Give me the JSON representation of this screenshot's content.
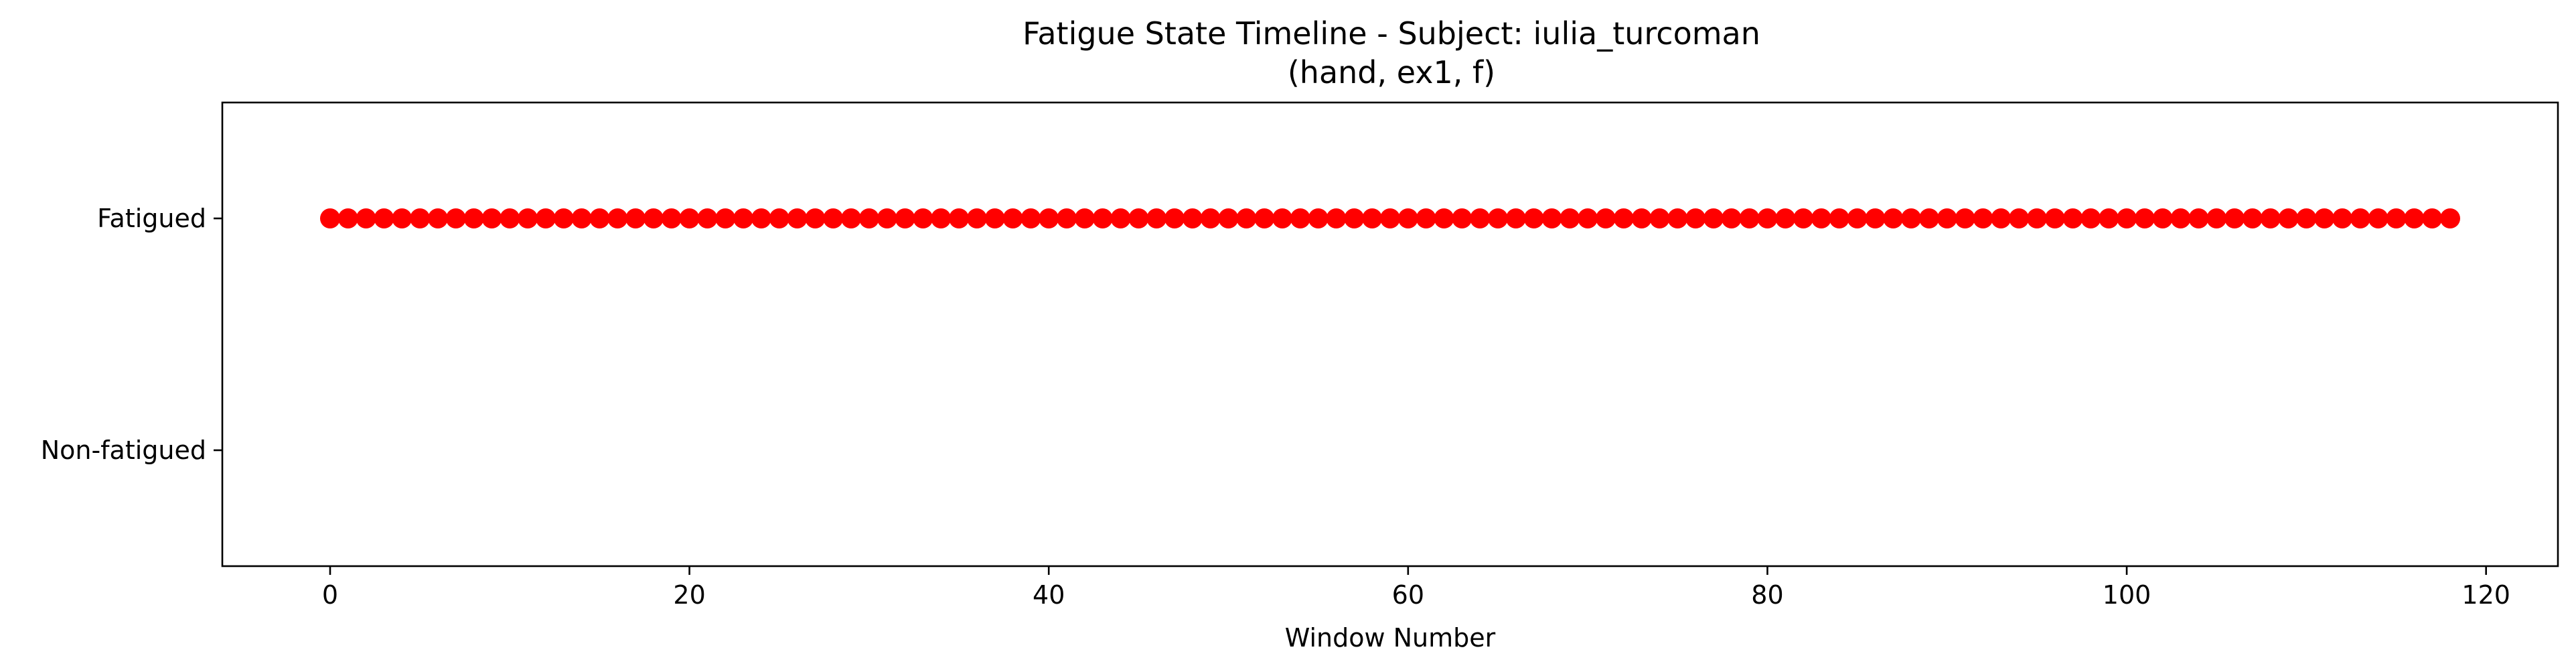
{
  "chart_data": {
    "type": "scatter",
    "title": "Fatigue State Timeline - Subject: iulia_turcoman",
    "subtitle": "(hand, ex1, f)",
    "xlabel": "Window Number",
    "ylabel": "",
    "xlim": [
      -6,
      124
    ],
    "ylim": [
      -0.5,
      1.5
    ],
    "x_ticks": [
      0,
      20,
      40,
      60,
      80,
      100,
      120
    ],
    "y_ticks": [
      {
        "value": 1,
        "label": "Fatigued"
      },
      {
        "value": 0,
        "label": "Non-fatigued"
      }
    ],
    "grid": false,
    "legend": "none",
    "marker_color": "#ff0000",
    "series": [
      {
        "x_start": 0,
        "x_end": 118,
        "x_step": 1,
        "y": 1
      }
    ]
  }
}
